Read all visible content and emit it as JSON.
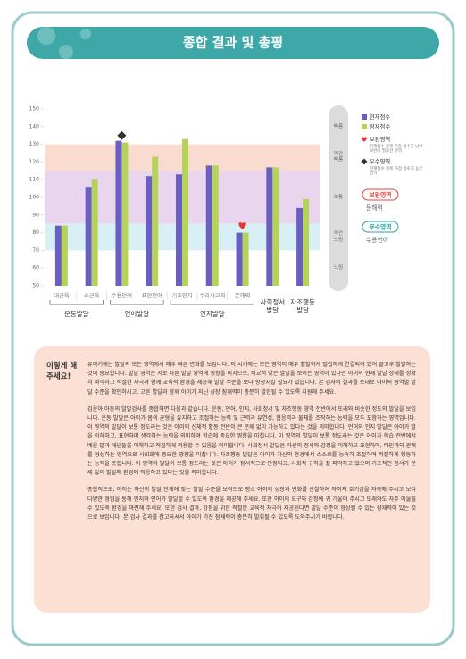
{
  "header": {
    "title": "종합 결과 및 총평"
  },
  "chart_data": {
    "type": "bar",
    "categories": [
      "대근육",
      "소근육",
      "수용언어",
      "표현언어",
      "기초인지",
      "수리사고력",
      "문해력",
      "사회정서 발달",
      "자조행동 발달"
    ],
    "groups": [
      "운동발달",
      "언어발달",
      "인지발달"
    ],
    "series": [
      {
        "name": "현재점수",
        "color": "#6a5fc1",
        "values": [
          84,
          106,
          132,
          112,
          113,
          118,
          80,
          117,
          94
        ]
      },
      {
        "name": "잠재점수",
        "color": "#b5d35a",
        "values": [
          84,
          110,
          131,
          123,
          133,
          118,
          80,
          117,
          99
        ]
      }
    ],
    "ylim": [
      50,
      150
    ],
    "yticks": [
      50,
      60,
      70,
      80,
      90,
      100,
      110,
      120,
      130,
      140,
      150
    ],
    "zones": [
      {
        "label": "빠름",
        "from": 130,
        "to": 150,
        "color": null
      },
      {
        "label": "약간 빠름",
        "from": 115,
        "to": 130,
        "color": "#f9dccf"
      },
      {
        "label": "보통",
        "from": 85,
        "to": 115,
        "color": "#ead5ef"
      },
      {
        "label": "약간 느림",
        "from": 70,
        "to": 85,
        "color": "#d8eff5"
      },
      {
        "label": "느림",
        "from": 50,
        "to": 70,
        "color": null
      }
    ],
    "highlights": [
      {
        "name": "보완영역",
        "description": "현재점수 중에 가장 점수가 낮아 보완이 필요한 영역",
        "area": "문해력",
        "value": 84,
        "shape": "heart",
        "color": "#e53935",
        "box_color": "#e0463f"
      },
      {
        "name": "우수영역",
        "description": "현재점수 중에 가장 점수가 높은 영역",
        "area": "수용언어",
        "value": 135,
        "shape": "diamond",
        "color": "#333333",
        "box_color": "#2aa3a6"
      }
    ]
  },
  "advice": {
    "heading": "이렇게 해 주세요!",
    "paragraphs": [
      "유아기에는 발달의 모든 영역에서 매우 빠른 변화를 보입니다. 이 시기에는 모든 영역이 매우 활발하게 밀접하게 연결되어 있어 골고루 발달하는 것이 중요합니다. 발달 영역은 서로 다른 발달 영역에 영향을 미치므로, 비교적 낮은 발달을 보이는 영역이 있다면 아이의 현재 발달 상태를 정확히 파악하고 적절한 자극과 함께 교육적 환경을 제공해 발달 수준을 보다 향상시킬 필요가 있습니다. 본 검사의 결과를 토대로 아이의 영역별 발달 수준을 확인하시고, 고른 발달과 함께 아이가 지닌 성장 잠재력이 충분히 발현될 수 있도록 지원해 주세요.",
      "김윤아 아동의 발달검사를 종합하면 다음과 같습니다. 운동, 언어, 인지, 사회정서 및 자조행동 영역 전반에서 또래와 비슷한 정도의 발달을 보입니다. 운동 발달은 아이가 몸의 균형을 유지하고 조절하는 능력 및 근력과 유연성, 협응력과 물체를 조작하는 능력을 모두 포함하는 영역입니다. 이 영역의 발달이 보통 정도라는 것은 아이의 신체적 활동 전반이 큰 문제 없이 가능하고 있다는 것을 의미합니다. 언어와 인지 발달은 아이가 말을 이해하고, 표현하며 생각하는 능력을 의미하며 학습에 중요한 영향을 미칩니다. 이 영역의 발달이 보통 정도라는 것은 아이가 학습 전반에서 배운 말과 개념들을 이해하고 적절하게 적용할 수 있음을 의미합니다. 사회정서 발달은 자신의 정서와 감정을 이해하고 표현하며, 타인과의 관계를 형성하는 영역으로 사회화에 중요한 영향을 미칩니다. 자조행동 발달은 아이가 자신의 환경에서 스스로를 능숙히 조절하며 적절하게 행동하는 능력을 뜻합니다. 이 영역의 발달이 보통 정도라는 것은 아이가 정서적으로 안정되고, 사회적 규칙을 잘 파악하고 있으며 기초적인 정서가 문제 없이 발달해 환경에 적응하고 있다는 것을 의미합니다.",
      "종합적으로, 아이는 자신의 발달 단계에 맞는 발달 수준을 보이므로 평소 아이의 성장과 변화를 관찰하여 아이의 호기심을 자극해 주시고 보다 다양한 경험을 통해 인지와 언어가 발달할 수 있도록 환경을 제공해 주세요. 또한 아이의 요구와 감정에 귀 기울여 주시고 또래와도 자주 어울릴 수 있도록 환경을 마련해 주세요. 또한 검사 결과, 강점을 위한 적절한 교육적 자극이 제공된다면 발달 수준이 향상될 수 있는 잠재력이 있는 것으로 보입니다. 본 검사 결과를 참고하셔서 아이가 가진 잠재력이 충분히 발휘될 수 있도록 도와주시기 바랍니다."
    ]
  }
}
